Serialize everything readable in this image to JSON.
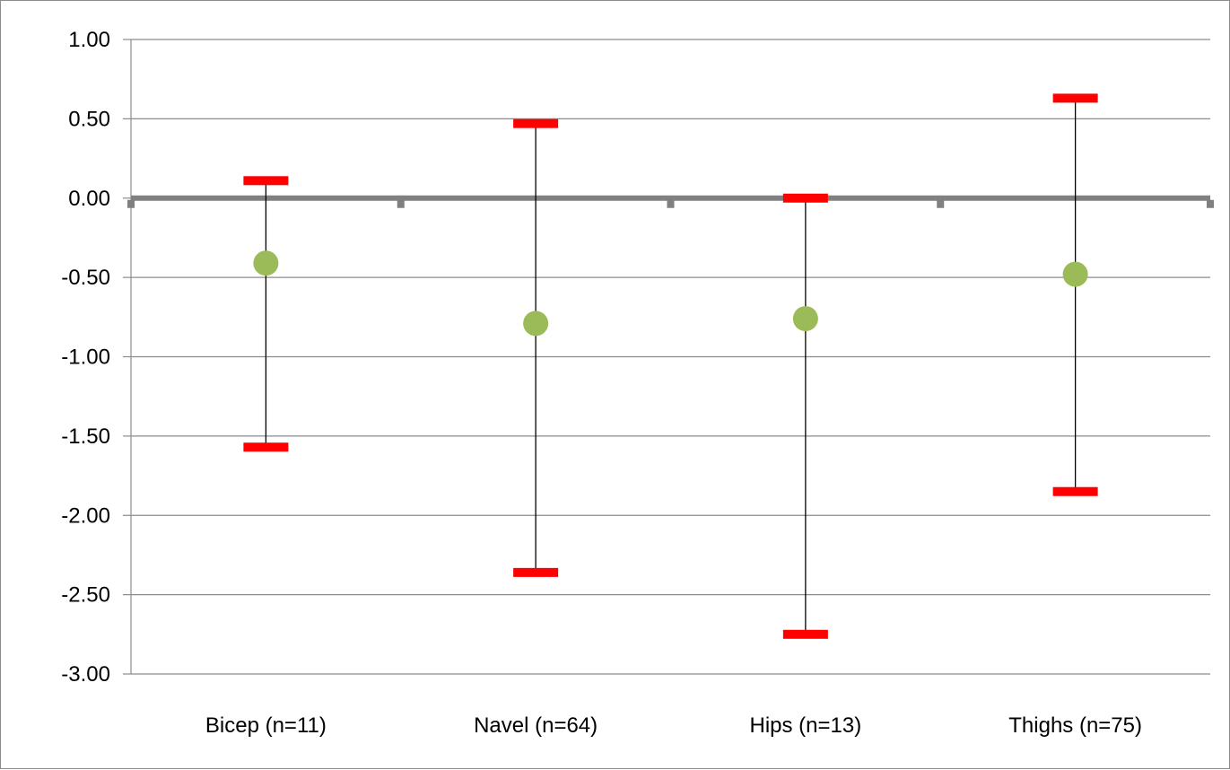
{
  "chart_data": {
    "type": "errorbar",
    "title": "",
    "xlabel": "",
    "ylabel": "",
    "categories": [
      "Bicep (n=11)",
      "Navel (n=64)",
      "Hips (n=13)",
      "Thighs (n=75)"
    ],
    "ylim": [
      -3.0,
      1.0
    ],
    "y_ticks": [
      "1.00",
      "0.50",
      "0.00",
      "-0.50",
      "-1.00",
      "-1.50",
      "-2.00",
      "-2.50",
      "-3.00"
    ],
    "y_tick_values": [
      1.0,
      0.5,
      0.0,
      -0.5,
      -1.0,
      -1.5,
      -2.0,
      -2.5,
      -3.0
    ],
    "series": [
      {
        "values": [
          -0.41,
          -0.79,
          -0.76,
          -0.48
        ],
        "upper": [
          0.11,
          0.47,
          0.0,
          0.63
        ],
        "lower": [
          -1.57,
          -2.36,
          -2.75,
          -1.85
        ]
      }
    ],
    "grid": true,
    "legend": "none",
    "colors": {
      "point": "#9bbb59",
      "cap": "#ff0000",
      "whisker": "#000000",
      "zero_line": "#808080",
      "gridline": "#8c8c8c",
      "axis": "#8c8c8c"
    }
  }
}
